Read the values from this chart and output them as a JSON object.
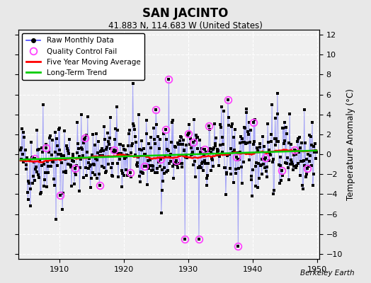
{
  "title": "SAN JACINTO",
  "subtitle": "41.883 N, 114.683 W (United States)",
  "ylabel": "Temperature Anomaly (°C)",
  "watermark": "Berkeley Earth",
  "year_start": 1904,
  "year_end": 1950,
  "ylim": [
    -10.5,
    12.5
  ],
  "yticks": [
    -10,
    -8,
    -6,
    -4,
    -2,
    0,
    2,
    4,
    6,
    8,
    10,
    12
  ],
  "xticks": [
    1910,
    1920,
    1930,
    1940,
    1950
  ],
  "bg_color": "#e8e8e8",
  "plot_bg_color": "#f0f0f0",
  "raw_line_color": "#4444ff",
  "raw_line_alpha": 0.45,
  "raw_dot_color": "#000000",
  "qc_fail_color": "#ff44ff",
  "moving_avg_color": "#ff0000",
  "trend_color": "#00cc00",
  "grid_color": "#ffffff",
  "raw_linewidth": 0.7,
  "raw_dot_size": 5,
  "moving_avg_linewidth": 1.8,
  "trend_linewidth": 1.8,
  "seed": 42
}
